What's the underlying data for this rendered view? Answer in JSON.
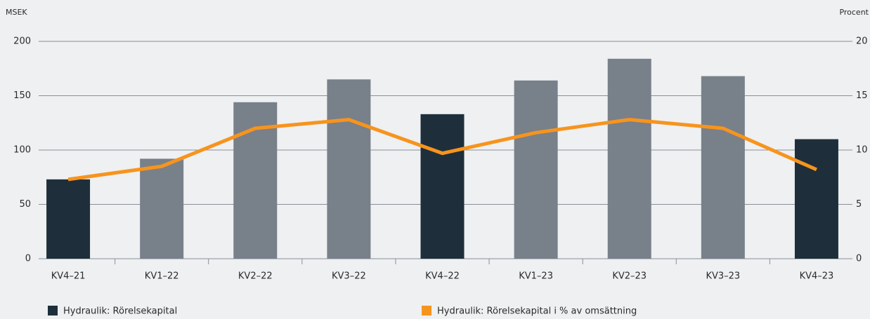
{
  "chart_data": {
    "type": "bar_line",
    "ylabel": "MSEK",
    "y2label": "Procent",
    "categories": [
      "KV4–21",
      "KV1–22",
      "KV2–22",
      "KV3–22",
      "KV4–22",
      "KV1–23",
      "KV2–23",
      "KV3–23",
      "KV4–23"
    ],
    "ylim": [
      0,
      200
    ],
    "yticks": [
      0,
      50,
      100,
      150,
      200
    ],
    "y2lim": [
      0,
      20
    ],
    "y2ticks": [
      0,
      5,
      10,
      15,
      20
    ],
    "grid": true,
    "series": [
      {
        "name": "Hydraulik: Rörelsekapital",
        "type": "bar",
        "color": "#1e2f3b",
        "colors": [
          "#1e2f3b",
          "#78808a",
          "#78808a",
          "#78808a",
          "#1e2f3b",
          "#78808a",
          "#78808a",
          "#78808a",
          "#1e2f3b"
        ],
        "values": [
          73,
          92,
          144,
          165,
          133,
          164,
          184,
          168,
          110
        ]
      },
      {
        "name": "Hydraulik: Rörelsekapital i % av omsättning",
        "type": "line",
        "axis": "y2",
        "color": "#f7941d",
        "values": [
          7.3,
          8.5,
          12,
          12.8,
          9.7,
          11.6,
          12.8,
          12,
          8.2
        ]
      }
    ]
  }
}
